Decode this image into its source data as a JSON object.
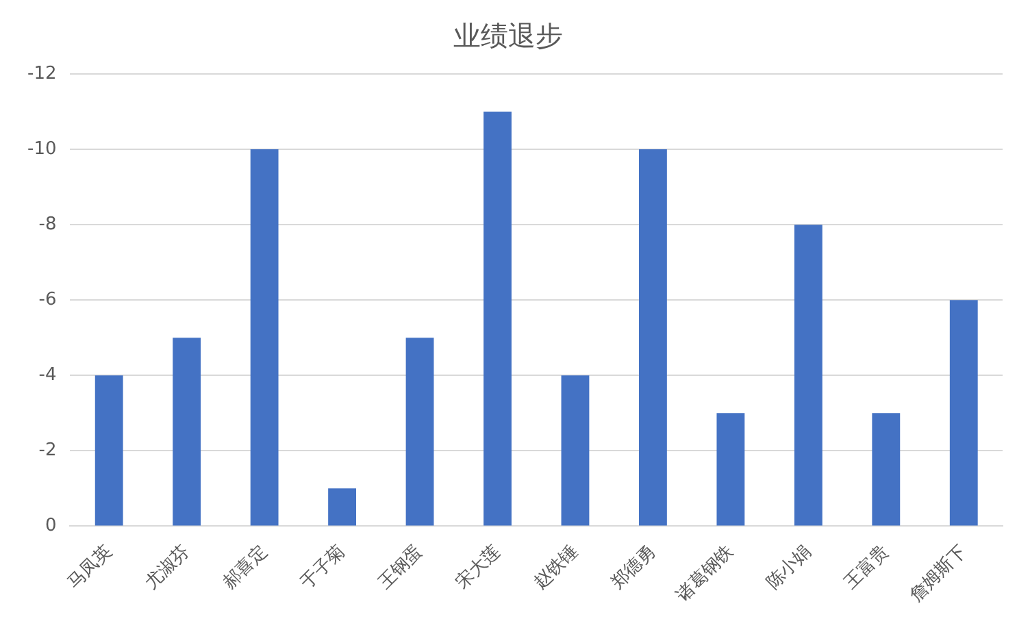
{
  "chart_data": {
    "type": "bar",
    "title": "业绩退步",
    "categories": [
      "马凤英",
      "尤淑芬",
      "郝喜定",
      "于子菊",
      "王钢蛋",
      "宋大莲",
      "赵铁锤",
      "郑德勇",
      "诸葛钢铁",
      "陈小娟",
      "王富贵",
      "詹姆斯下"
    ],
    "values": [
      -4,
      -5,
      -10,
      -1,
      -5,
      -11,
      -4,
      -10,
      -3,
      -8,
      -3,
      -6
    ],
    "color": "#4472c4",
    "ylim": [
      0,
      -12
    ],
    "yticks": [
      0,
      -2,
      -4,
      -6,
      -8,
      -10,
      -12
    ],
    "grid": "y",
    "legend": false
  }
}
